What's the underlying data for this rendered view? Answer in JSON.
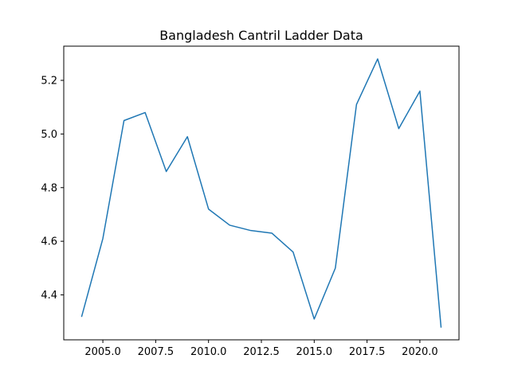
{
  "chart_data": {
    "type": "line",
    "title": "Bangladesh Cantril Ladder Data",
    "xlabel": "",
    "ylabel": "",
    "xlim": [
      2003.15,
      2021.85
    ],
    "ylim": [
      4.2325,
      5.3275
    ],
    "xticks": [
      2005.0,
      2007.5,
      2010.0,
      2012.5,
      2015.0,
      2017.5,
      2020.0
    ],
    "xtick_labels": [
      "2005.0",
      "2007.5",
      "2010.0",
      "2012.5",
      "2015.0",
      "2017.5",
      "2020.0"
    ],
    "yticks": [
      4.4,
      4.6,
      4.8,
      5.0,
      5.2
    ],
    "ytick_labels": [
      "4.4",
      "4.6",
      "4.8",
      "5.0",
      "5.2"
    ],
    "grid": false,
    "series": [
      {
        "color": "#1f77b4",
        "x": [
          2004,
          2005,
          2006,
          2007,
          2008,
          2009,
          2010,
          2011,
          2012,
          2013,
          2014,
          2015,
          2016,
          2017,
          2018,
          2019,
          2020,
          2021
        ],
        "y": [
          4.32,
          4.61,
          5.05,
          5.08,
          4.86,
          4.99,
          4.72,
          4.66,
          4.64,
          4.63,
          4.56,
          4.31,
          4.5,
          5.11,
          5.28,
          5.02,
          5.16,
          4.28
        ]
      }
    ]
  }
}
